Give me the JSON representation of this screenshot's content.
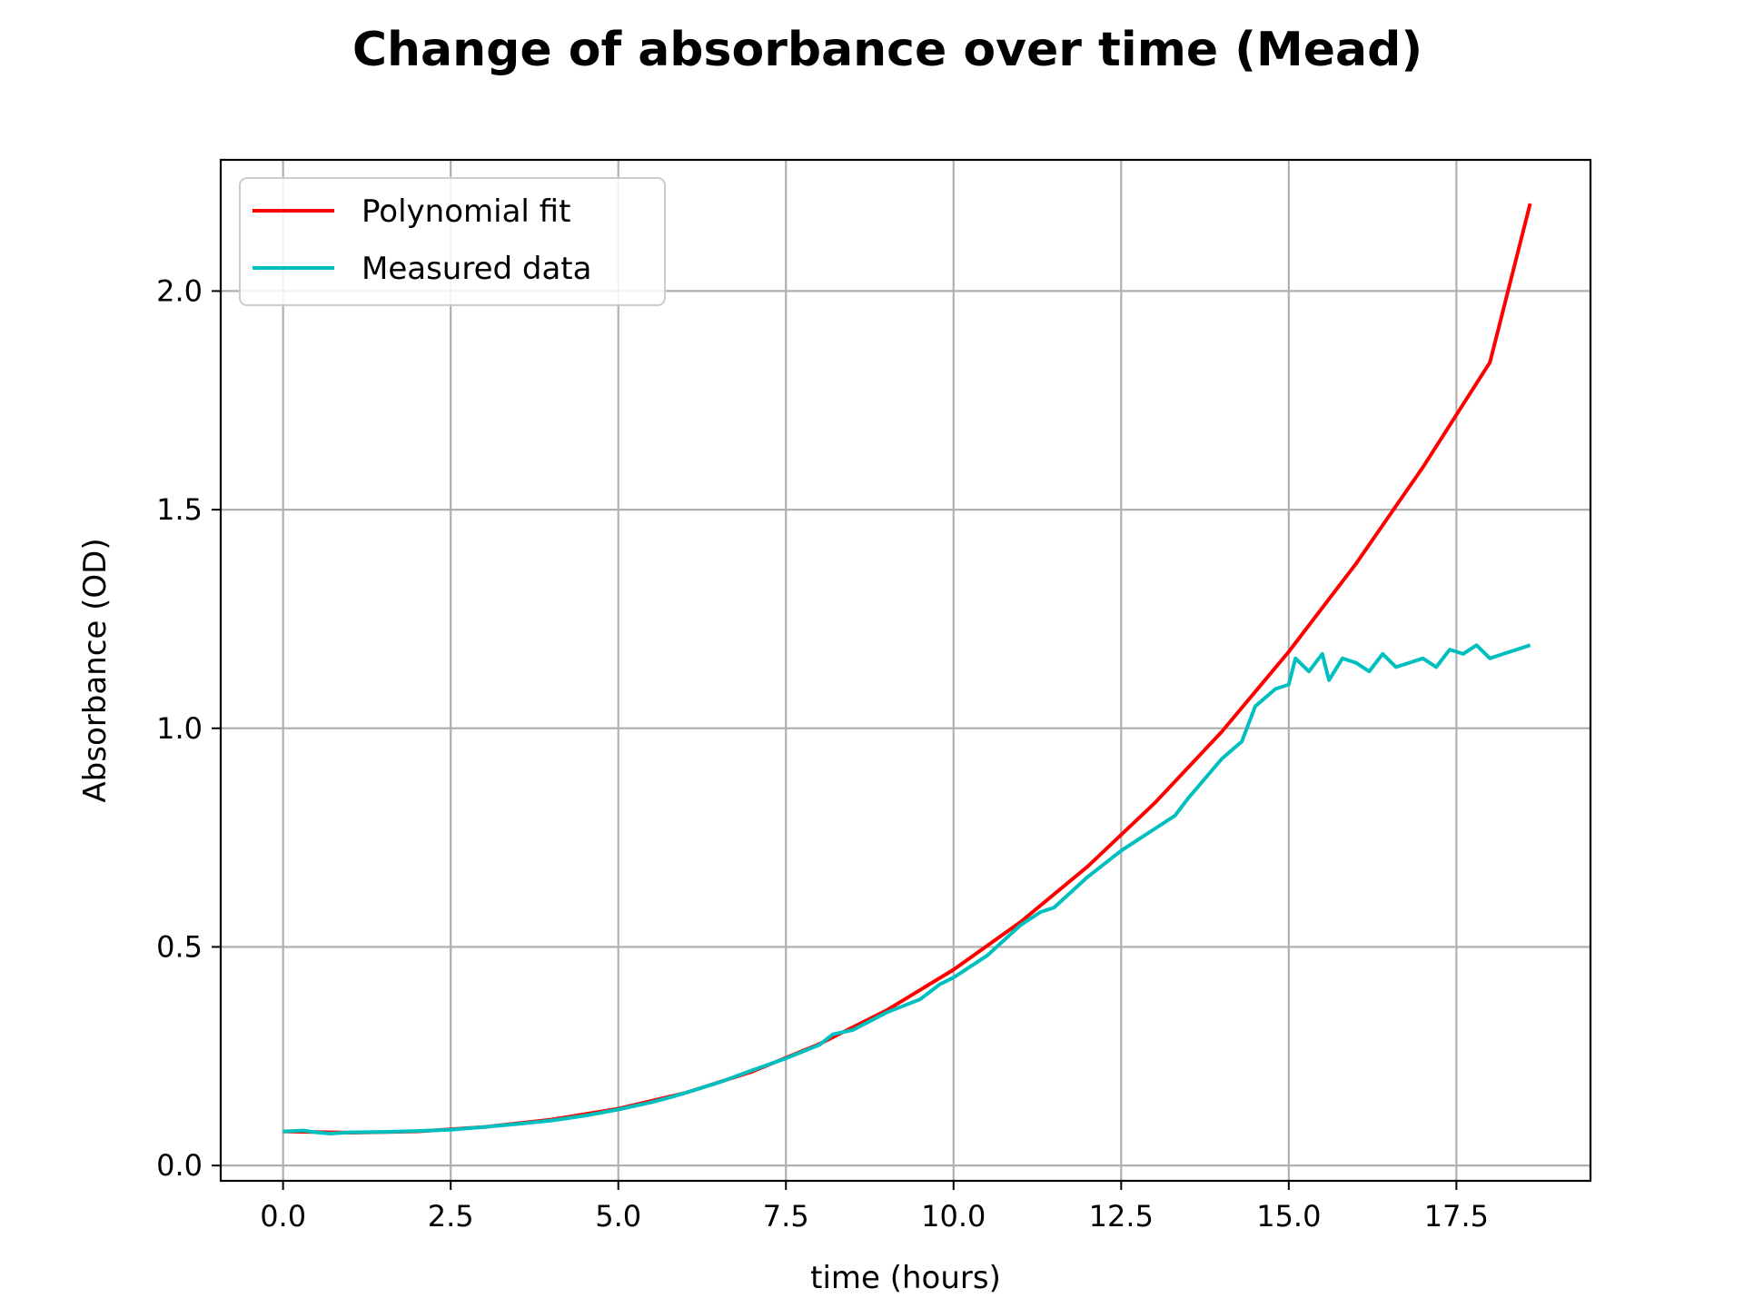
{
  "chart_data": {
    "type": "line",
    "title": "Change of absorbance over time (Mead)",
    "xlabel": "time (hours)",
    "ylabel": "Absorbance (OD)",
    "xlim": [
      -0.93,
      19.5
    ],
    "ylim": [
      -0.035,
      2.3
    ],
    "xticks": [
      0.0,
      2.5,
      5.0,
      7.5,
      10.0,
      12.5,
      15.0,
      17.5
    ],
    "xtick_labels": [
      "0.0",
      "2.5",
      "5.0",
      "7.5",
      "10.0",
      "12.5",
      "15.0",
      "17.5"
    ],
    "yticks": [
      0.0,
      0.5,
      1.0,
      1.5,
      2.0
    ],
    "ytick_labels": [
      "0.0",
      "0.5",
      "1.0",
      "1.5",
      "2.0"
    ],
    "grid": true,
    "legend_position": "top-left",
    "series": [
      {
        "name": "Polynomial fit",
        "color": "#ff0000",
        "x": [
          0,
          1,
          2,
          3,
          4,
          5,
          6,
          7,
          8,
          9,
          10,
          11,
          12,
          13,
          14,
          15,
          16,
          17,
          18,
          18.6
        ],
        "y": [
          0.078,
          0.075,
          0.078,
          0.088,
          0.105,
          0.13,
          0.166,
          0.215,
          0.278,
          0.355,
          0.448,
          0.557,
          0.684,
          0.829,
          0.992,
          1.175,
          1.376,
          1.597,
          1.837,
          2.2
        ]
      },
      {
        "name": "Measured data",
        "color": "#00bfbf",
        "x": [
          0,
          0.3,
          0.5,
          0.7,
          1,
          1.5,
          2,
          2.5,
          3,
          3.5,
          4,
          4.5,
          5,
          5.5,
          5.8,
          6,
          6.5,
          7,
          7.5,
          8,
          8.2,
          8.5,
          9,
          9.5,
          9.8,
          10,
          10.5,
          11,
          11.3,
          11.5,
          12,
          12.5,
          12.8,
          13,
          13.3,
          13.5,
          14,
          14.3,
          14.5,
          14.8,
          15,
          15.1,
          15.3,
          15.5,
          15.6,
          15.8,
          16,
          16.2,
          16.4,
          16.6,
          16.8,
          17,
          17.2,
          17.4,
          17.6,
          17.8,
          18,
          18.2,
          18.4,
          18.6
        ],
        "y": [
          0.078,
          0.08,
          0.076,
          0.073,
          0.076,
          0.077,
          0.079,
          0.082,
          0.088,
          0.095,
          0.103,
          0.114,
          0.128,
          0.145,
          0.157,
          0.166,
          0.19,
          0.218,
          0.245,
          0.276,
          0.3,
          0.31,
          0.35,
          0.38,
          0.415,
          0.43,
          0.48,
          0.55,
          0.58,
          0.59,
          0.66,
          0.72,
          0.75,
          0.77,
          0.8,
          0.84,
          0.93,
          0.97,
          1.05,
          1.09,
          1.1,
          1.16,
          1.13,
          1.17,
          1.11,
          1.16,
          1.15,
          1.13,
          1.17,
          1.14,
          1.15,
          1.16,
          1.14,
          1.18,
          1.17,
          1.19,
          1.16,
          1.17,
          1.18,
          1.19
        ]
      }
    ]
  }
}
